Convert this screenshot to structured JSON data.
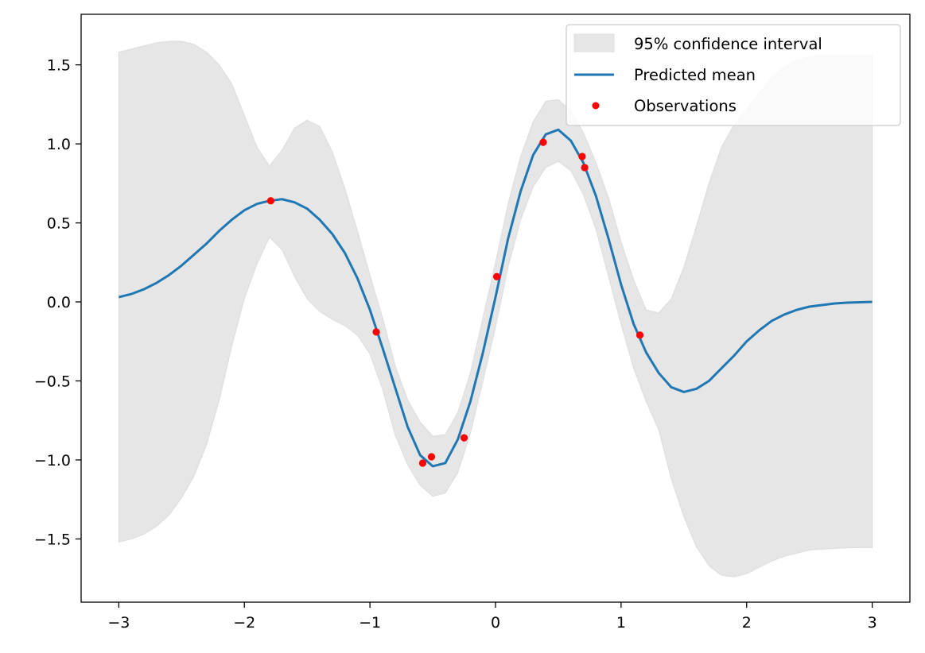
{
  "chart_data": {
    "type": "line",
    "title": "",
    "xlabel": "",
    "ylabel": "",
    "xlim": [
      -3.3,
      3.3
    ],
    "ylim": [
      -1.9,
      1.82
    ],
    "grid": false,
    "legend_position": "top-right",
    "xticks": [
      -3,
      -2,
      -1,
      0,
      1,
      2,
      3
    ],
    "yticks": [
      -1.5,
      -1.0,
      -0.5,
      0.0,
      0.5,
      1.0,
      1.5
    ],
    "xtick_labels": [
      "−3",
      "−2",
      "−1",
      "0",
      "1",
      "2",
      "3"
    ],
    "ytick_labels": [
      "−1.5",
      "−1.0",
      "−0.5",
      "0.0",
      "0.5",
      "1.0",
      "1.5"
    ],
    "legend": [
      {
        "label": "95% confidence interval",
        "kind": "band",
        "color": "#e6e6e6"
      },
      {
        "label": "Predicted mean",
        "kind": "line",
        "color": "#1f77b4"
      },
      {
        "label": "Observations",
        "kind": "marker",
        "color": "#ff0000"
      }
    ],
    "series": [
      {
        "name": "Predicted mean",
        "color": "#1f77b4",
        "x": [
          -3.0,
          -2.9,
          -2.8,
          -2.7,
          -2.6,
          -2.5,
          -2.4,
          -2.3,
          -2.2,
          -2.1,
          -2.0,
          -1.9,
          -1.8,
          -1.7,
          -1.6,
          -1.5,
          -1.4,
          -1.3,
          -1.2,
          -1.1,
          -1.0,
          -0.9,
          -0.8,
          -0.7,
          -0.6,
          -0.5,
          -0.4,
          -0.3,
          -0.2,
          -0.1,
          0.0,
          0.1,
          0.2,
          0.3,
          0.4,
          0.5,
          0.6,
          0.7,
          0.8,
          0.9,
          1.0,
          1.1,
          1.2,
          1.3,
          1.4,
          1.5,
          1.6,
          1.7,
          1.8,
          1.9,
          2.0,
          2.1,
          2.2,
          2.3,
          2.4,
          2.5,
          2.6,
          2.7,
          2.8,
          2.9,
          3.0
        ],
        "y": [
          0.03,
          0.05,
          0.08,
          0.12,
          0.17,
          0.23,
          0.3,
          0.37,
          0.45,
          0.52,
          0.58,
          0.62,
          0.64,
          0.65,
          0.63,
          0.59,
          0.52,
          0.43,
          0.31,
          0.15,
          -0.05,
          -0.29,
          -0.54,
          -0.79,
          -0.97,
          -1.04,
          -1.02,
          -0.87,
          -0.63,
          -0.32,
          0.03,
          0.4,
          0.7,
          0.93,
          1.06,
          1.09,
          1.02,
          0.88,
          0.67,
          0.4,
          0.11,
          -0.14,
          -0.32,
          -0.45,
          -0.54,
          -0.57,
          -0.55,
          -0.5,
          -0.42,
          -0.34,
          -0.25,
          -0.18,
          -0.12,
          -0.08,
          -0.05,
          -0.03,
          -0.02,
          -0.01,
          -0.005,
          -0.002,
          0.0
        ]
      }
    ],
    "confidence_interval": {
      "name": "95% confidence interval",
      "color": "#e6e6e6",
      "x": [
        -3.0,
        -2.9,
        -2.8,
        -2.7,
        -2.6,
        -2.5,
        -2.4,
        -2.3,
        -2.2,
        -2.1,
        -2.0,
        -1.9,
        -1.8,
        -1.7,
        -1.6,
        -1.5,
        -1.4,
        -1.3,
        -1.2,
        -1.1,
        -1.0,
        -0.9,
        -0.8,
        -0.7,
        -0.6,
        -0.5,
        -0.4,
        -0.3,
        -0.2,
        -0.1,
        0.0,
        0.1,
        0.2,
        0.3,
        0.4,
        0.5,
        0.6,
        0.7,
        0.8,
        0.9,
        1.0,
        1.1,
        1.2,
        1.3,
        1.4,
        1.5,
        1.6,
        1.7,
        1.8,
        1.9,
        2.0,
        2.1,
        2.2,
        2.3,
        2.4,
        2.5,
        2.6,
        2.7,
        2.8,
        2.9,
        3.0
      ],
      "upper": [
        1.58,
        1.6,
        1.62,
        1.64,
        1.65,
        1.65,
        1.63,
        1.58,
        1.5,
        1.38,
        1.18,
        0.98,
        0.86,
        0.96,
        1.1,
        1.15,
        1.11,
        0.95,
        0.72,
        0.45,
        0.17,
        -0.1,
        -0.4,
        -0.62,
        -0.76,
        -0.85,
        -0.84,
        -0.7,
        -0.45,
        -0.1,
        0.25,
        0.62,
        0.92,
        1.14,
        1.27,
        1.28,
        1.21,
        1.07,
        0.88,
        0.66,
        0.38,
        0.14,
        -0.05,
        -0.07,
        0.02,
        0.22,
        0.48,
        0.75,
        0.98,
        1.12,
        1.22,
        1.32,
        1.42,
        1.49,
        1.53,
        1.55,
        1.56,
        1.56,
        1.56,
        1.56,
        1.56
      ],
      "lower": [
        -1.52,
        -1.5,
        -1.47,
        -1.42,
        -1.35,
        -1.24,
        -1.1,
        -0.9,
        -0.62,
        -0.28,
        0.02,
        0.24,
        0.41,
        0.33,
        0.16,
        0.02,
        -0.06,
        -0.11,
        -0.15,
        -0.21,
        -0.33,
        -0.55,
        -0.84,
        -1.03,
        -1.16,
        -1.23,
        -1.21,
        -1.08,
        -0.83,
        -0.5,
        -0.16,
        0.22,
        0.52,
        0.73,
        0.85,
        0.89,
        0.83,
        0.68,
        0.46,
        0.16,
        -0.14,
        -0.42,
        -0.63,
        -0.81,
        -1.12,
        -1.36,
        -1.55,
        -1.67,
        -1.73,
        -1.74,
        -1.72,
        -1.68,
        -1.64,
        -1.61,
        -1.59,
        -1.57,
        -1.565,
        -1.56,
        -1.556,
        -1.555,
        -1.555
      ]
    },
    "observations": {
      "name": "Observations",
      "color": "#ff0000",
      "x": [
        -1.79,
        -0.95,
        -0.58,
        -0.51,
        -0.25,
        0.01,
        0.38,
        0.69,
        0.71,
        1.15
      ],
      "y": [
        0.64,
        -0.19,
        -1.02,
        -0.98,
        -0.86,
        0.16,
        1.01,
        0.92,
        0.85,
        -0.21
      ]
    }
  }
}
